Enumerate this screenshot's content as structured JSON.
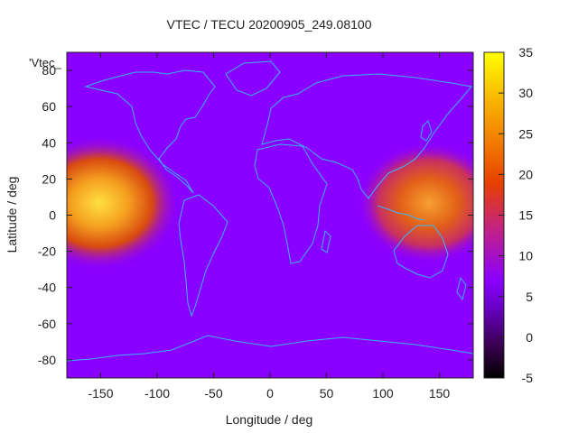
{
  "chart_data": {
    "type": "heatmap",
    "title": "VTEC / TECU 20200905_249.08100",
    "xlabel": "Longitude / deg",
    "ylabel": "Latitude / deg",
    "xlim": [
      -180,
      180
    ],
    "ylim": [
      -90,
      90
    ],
    "x_ticks": [
      -150,
      -100,
      -50,
      0,
      50,
      100,
      150
    ],
    "y_ticks": [
      -80,
      -60,
      -40,
      -20,
      0,
      20,
      40,
      60,
      80
    ],
    "colorbar": {
      "min": -5,
      "max": 35,
      "ticks": [
        35,
        30,
        25,
        20,
        15,
        10,
        5,
        0,
        -5
      ],
      "palette": [
        "#000000",
        "#3a0050",
        "#6a00c8",
        "#8a00ff",
        "#c0208a",
        "#e84000",
        "#f27a00",
        "#f8b800",
        "#ffff00"
      ]
    },
    "background_value": 5,
    "series_label": "'Vtec_",
    "features": [
      {
        "name": "pacific-maximum",
        "lon_range": [
          -180,
          -100
        ],
        "lat_range": [
          -35,
          35
        ],
        "peak": 30
      },
      {
        "name": "west-pacific-maximum",
        "lon_range": [
          80,
          180
        ],
        "lat_range": [
          -30,
          35
        ],
        "peak": 25
      }
    ],
    "overlay": "coastlines"
  }
}
